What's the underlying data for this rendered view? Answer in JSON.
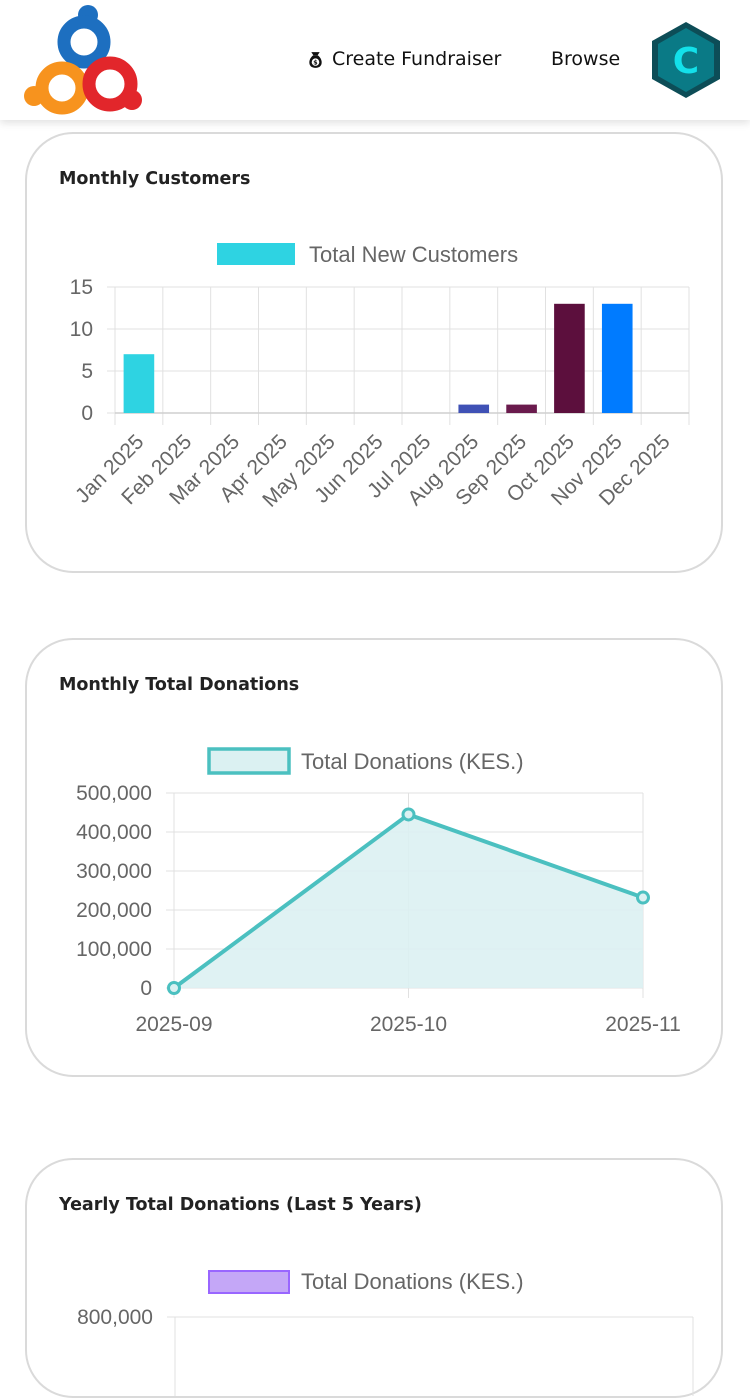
{
  "header": {
    "logo_icon": "people-circle-logo-icon",
    "create_fundraiser_label": "Create Fundraiser",
    "create_fundraiser_icon": "money-bag-icon",
    "browse_label": "Browse",
    "avatar_letter": "C"
  },
  "cards": {
    "monthly_customers": {
      "title": "Monthly Customers"
    },
    "monthly_donations": {
      "title": "Monthly Total Donations"
    },
    "yearly_donations": {
      "title": "Yearly Total Donations (Last 5 Years)"
    }
  },
  "chart_data": [
    {
      "type": "bar",
      "categories": [
        "Jan 2025",
        "Feb 2025",
        "Mar 2025",
        "Apr 2025",
        "May 2025",
        "Jun 2025",
        "Jul 2025",
        "Aug 2025",
        "Sep 2025",
        "Oct 2025",
        "Nov 2025",
        "Dec 2025"
      ],
      "series": [
        {
          "name": "Total New Customers",
          "values": [
            7,
            0,
            0,
            0,
            0,
            0,
            0,
            1,
            1,
            13,
            13,
            0
          ]
        }
      ],
      "bar_colors": [
        "#2ed3e2",
        "#2ed3e2",
        "#2ed3e2",
        "#2ed3e2",
        "#2ed3e2",
        "#2ed3e2",
        "#2ed3e2",
        "#3f51b5",
        "#6a1b4d",
        "#5c0f3d",
        "#007bff",
        "#2ed3e2"
      ],
      "legend_color": "#2ed3e2",
      "ylim": [
        0,
        15
      ],
      "yticks": [
        0,
        5,
        10,
        15
      ],
      "grid": true,
      "legend": "top"
    },
    {
      "type": "area",
      "x": [
        "2025-09",
        "2025-10",
        "2025-11"
      ],
      "series": [
        {
          "name": "Total Donations (KES.)",
          "values": [
            0,
            445000,
            232000
          ]
        }
      ],
      "line_color": "#4bc0c0",
      "fill_color": "#dbf1f2",
      "ylim": [
        0,
        500000
      ],
      "yticks": [
        "0",
        "100,000",
        "200,000",
        "300,000",
        "400,000",
        "500,000"
      ],
      "grid": true,
      "legend": "top"
    },
    {
      "type": "bar",
      "series": [
        {
          "name": "Total Donations (KES.)",
          "values": []
        }
      ],
      "legend_color": "#c4a7f7",
      "legend_border": "#9966ff",
      "yticks_visible": [
        "800,000"
      ],
      "grid": true,
      "legend": "top"
    }
  ]
}
